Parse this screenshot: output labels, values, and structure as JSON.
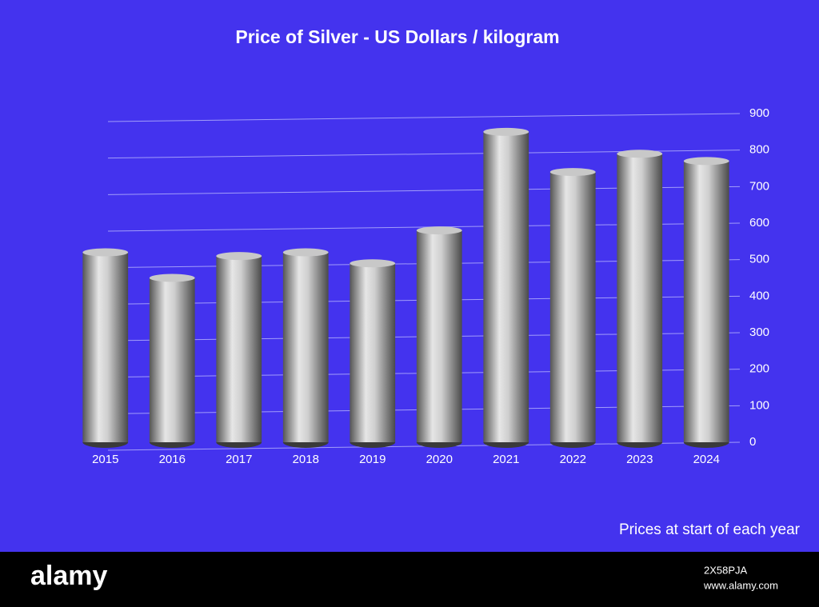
{
  "chart_data": {
    "type": "bar",
    "title": "Price of Silver - US Dollars / kilogram",
    "note": "Prices at start of each year",
    "categories": [
      "2015",
      "2016",
      "2017",
      "2018",
      "2019",
      "2020",
      "2021",
      "2022",
      "2023",
      "2024"
    ],
    "values": [
      520,
      450,
      510,
      520,
      490,
      580,
      850,
      740,
      790,
      770
    ],
    "color": "#c8c8c8",
    "ylim": [
      0,
      900
    ],
    "yticks": [
      0,
      100,
      200,
      300,
      400,
      500,
      600,
      700,
      800,
      900
    ],
    "grid": true
  },
  "footer": {
    "brand": "alamy",
    "image_id": "2X58PJA",
    "url": "www.alamy.com"
  }
}
